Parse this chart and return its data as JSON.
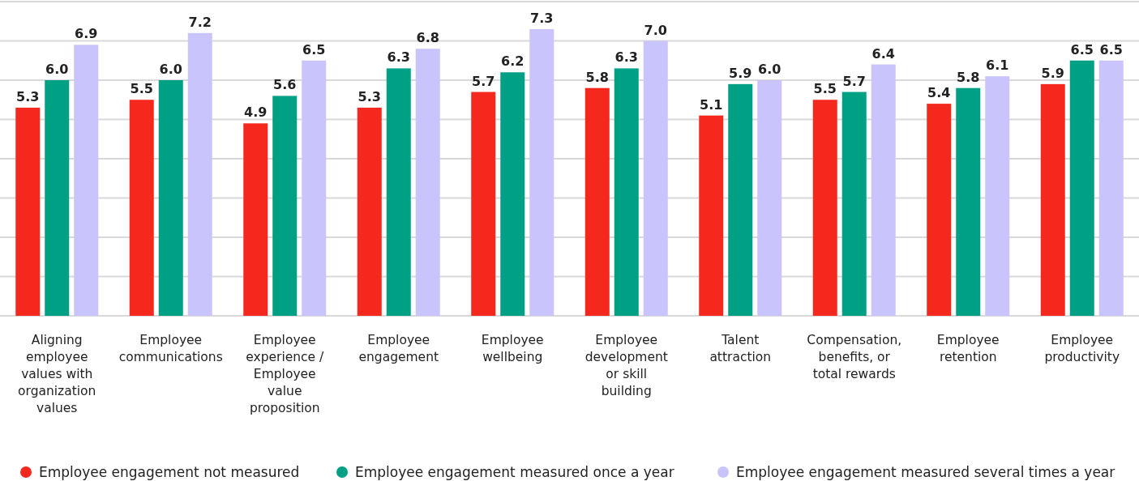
{
  "chart_data": {
    "type": "bar",
    "categories": [
      "Aligning employee values with organization values",
      "Employee communications",
      "Employee experience / Employee value proposition",
      "Employee engagement",
      "Employee wellbeing",
      "Employee development or skill building",
      "Talent attraction",
      "Compensation, benefits, or total rewards",
      "Employee retention",
      "Employee productivity"
    ],
    "series": [
      {
        "name": "Employee engagement not measured",
        "color": "#f4281c",
        "values": [
          5.3,
          5.5,
          4.9,
          5.3,
          5.7,
          5.8,
          5.1,
          5.5,
          5.4,
          5.9
        ],
        "value_labels": [
          "5.3",
          "5.5",
          "4.9",
          "5.3",
          "5.7",
          "5.8",
          "5.1",
          "5.5",
          "5.4",
          "5.9"
        ]
      },
      {
        "name": "Employee engagement measured once a year",
        "color": "#00a085",
        "values": [
          6.0,
          6.0,
          5.6,
          6.3,
          6.2,
          6.3,
          5.9,
          5.7,
          5.8,
          6.5
        ],
        "value_labels": [
          "6.0",
          "6.0",
          "5.6",
          "6.3",
          "6.2",
          "6.3",
          "5.9",
          "5.7",
          "5.8",
          "6.5"
        ]
      },
      {
        "name": "Employee engagement measured several times a year",
        "color": "#c9c4fb",
        "values": [
          6.9,
          7.2,
          6.5,
          6.8,
          7.3,
          7.0,
          6.0,
          6.4,
          6.1,
          6.5
        ],
        "value_labels": [
          "6.9",
          "7.2",
          "6.5",
          "6.8",
          "7.3",
          "7.0",
          "6.0",
          "6.4",
          "6.1",
          "6.5"
        ]
      }
    ],
    "ylim": [
      0,
      8
    ],
    "yticks": [
      {
        "value": 0,
        "label": null
      },
      {
        "value": 1,
        "label": null
      },
      {
        "value": 2,
        "label": null
      },
      {
        "value": 3,
        "label": null
      },
      {
        "value": 4,
        "label": null
      },
      {
        "value": 5,
        "label": null
      },
      {
        "value": 6,
        "label": null
      },
      {
        "value": 7,
        "label": null
      },
      {
        "value": 8,
        "label": null
      }
    ],
    "tick_labels": "x",
    "grid": "y",
    "legend": "bottom"
  }
}
